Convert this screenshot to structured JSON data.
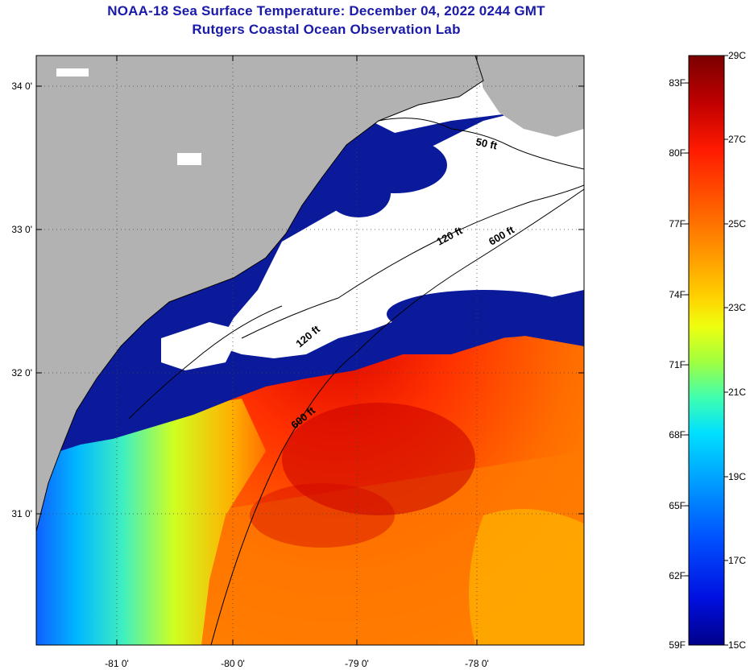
{
  "header": {
    "title": "NOAA-18 Sea Surface Temperature:  December 04, 2022 0244 GMT",
    "subtitle": "Rutgers Coastal Ocean Observation Lab"
  },
  "map": {
    "lat_ticks": [
      "34 0'",
      "33 0'",
      "32 0'",
      "31 0'"
    ],
    "lon_ticks": [
      "-81 0'",
      "-80 0'",
      "-79 0'",
      "-78 0'"
    ],
    "isobath_labels": [
      {
        "id": "iso-50-ne",
        "text": "50 ft"
      },
      {
        "id": "iso-120-ne",
        "text": "120 ft"
      },
      {
        "id": "iso-600-ne",
        "text": "600 ft"
      },
      {
        "id": "iso-120-mid",
        "text": "120 ft"
      },
      {
        "id": "iso-600-sw",
        "text": "600 ft"
      }
    ],
    "colors": {
      "land": "#b2b2b2",
      "cloud_mask": "#ffffff",
      "cold_water": "#0a1a9a",
      "coast_lines": "#000000"
    }
  },
  "colorbar": {
    "f_labels": [
      "83F",
      "80F",
      "77F",
      "74F",
      "71F",
      "68F",
      "65F",
      "62F",
      "59F"
    ],
    "c_labels": [
      "29C",
      "27C",
      "25C",
      "23C",
      "21C",
      "19C",
      "17C",
      "15C"
    ],
    "gradient": [
      "#7a0000",
      "#c00000",
      "#ff2000",
      "#ff6000",
      "#ff9a00",
      "#ffd200",
      "#f0ff00",
      "#a0ff40",
      "#40ffb0",
      "#00e0ff",
      "#00a0ff",
      "#0050ff",
      "#0010e0",
      "#00008a"
    ]
  }
}
